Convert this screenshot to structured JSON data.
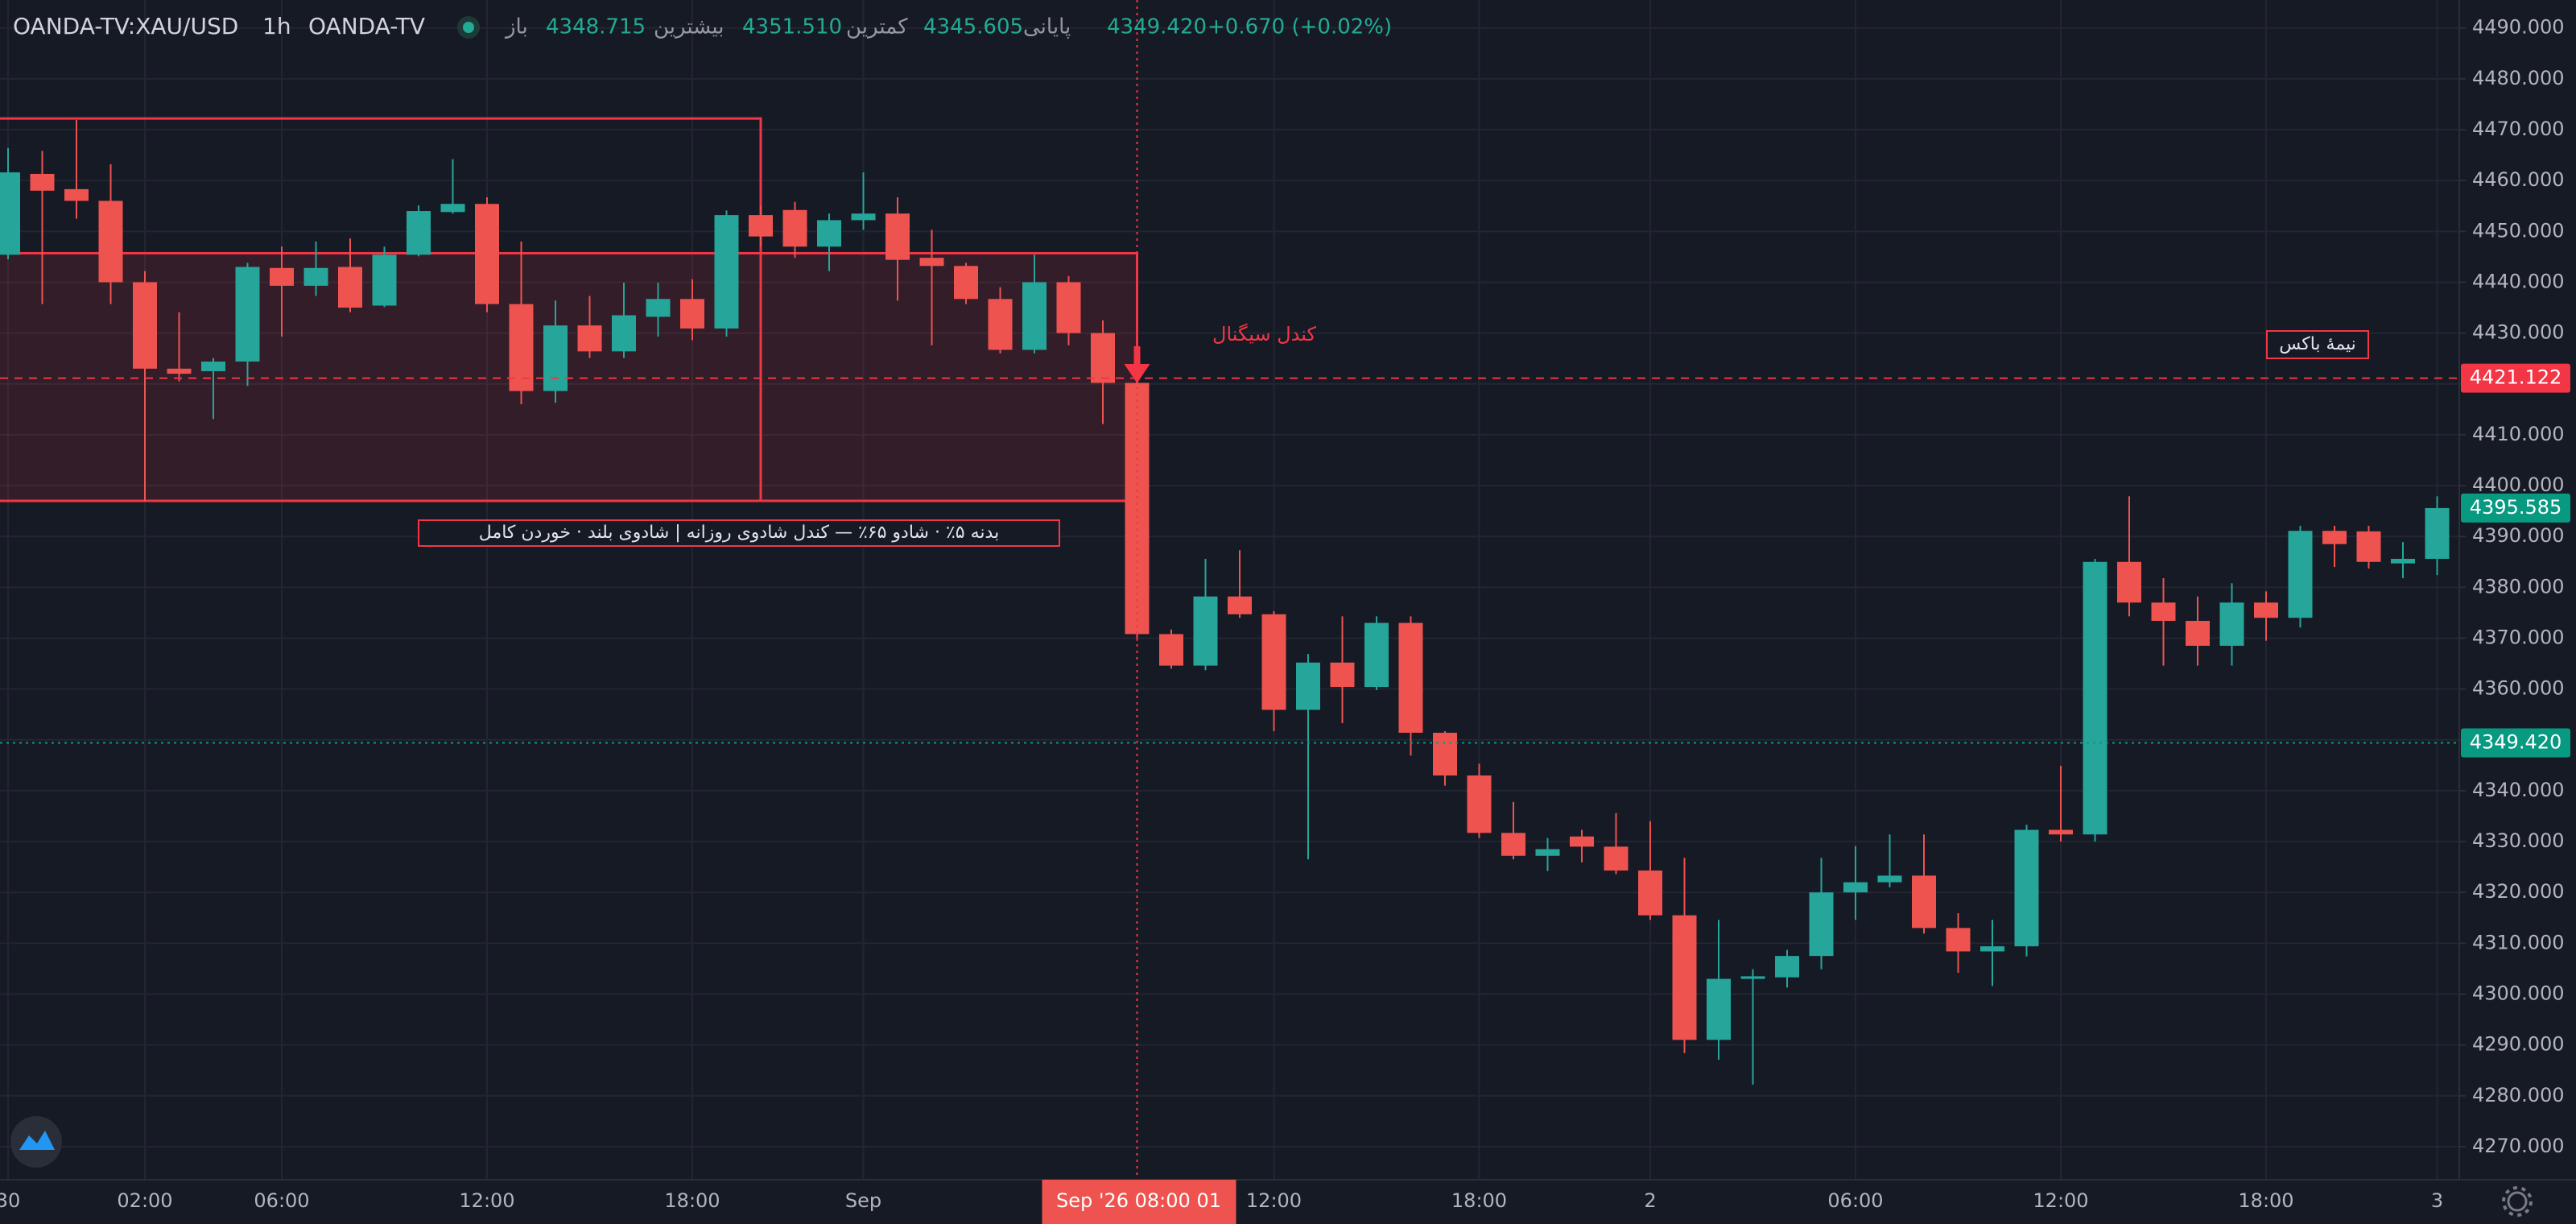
{
  "chart_data": {
    "type": "candlestick",
    "header": {
      "symbol": "OANDA-TV:XAU/USD",
      "interval": "1h",
      "source": "OANDA-TV",
      "fields": [
        {
          "label": "باز",
          "value": "4348.715"
        },
        {
          "label": "بیشترین",
          "value": "4351.510"
        },
        {
          "label": "کمترین",
          "value": "4345.605"
        },
        {
          "label": "پایانی",
          "value": "4349.420"
        }
      ],
      "change": "+0.670 (+0.02%)"
    },
    "categories": [
      "30",
      null,
      null,
      null,
      "02:00",
      null,
      null,
      null,
      "06:00",
      null,
      null,
      null,
      null,
      null,
      "12:00",
      null,
      null,
      null,
      null,
      null,
      "18:00",
      null,
      null,
      null,
      null,
      "Sep",
      null,
      null,
      null,
      null,
      null,
      null,
      null,
      null,
      null,
      null,
      null,
      "12:00",
      null,
      null,
      null,
      null,
      null,
      "18:00",
      null,
      null,
      null,
      null,
      "2",
      null,
      null,
      null,
      null,
      null,
      "06:00",
      null,
      null,
      null,
      null,
      null,
      "12:00",
      null,
      null,
      null,
      null,
      null,
      "18:00",
      null,
      null,
      null,
      null,
      "3"
    ],
    "open": [
      4445.4,
      4461.3,
      4458.3,
      4456,
      4440,
      4423,
      4422.5,
      4424.4,
      4442.8,
      4439.3,
      4443,
      4435.4,
      4445.4,
      4453.8,
      4455.4,
      4435.7,
      4418.6,
      4431.5,
      4426.4,
      4433.2,
      4436.7,
      4430.9,
      4453.2,
      4454.2,
      4447,
      4452.2,
      4453.5,
      4444.8,
      4443.2,
      4436.7,
      4426.7,
      4440,
      4430,
      4420.2,
      4370.8,
      4364.6,
      4378.2,
      4374.7,
      4355.9,
      4365.2,
      4360.4,
      4373,
      4351.4,
      4343,
      4331.7,
      4327.2,
      4331,
      4329,
      4324.3,
      4315.5,
      4291,
      4303,
      4303.3,
      4307.5,
      4320,
      4322,
      4323.3,
      4313,
      4308.4,
      4309.4,
      4332.3,
      4331.4,
      4385,
      4377,
      4373.4,
      4368.5,
      4377,
      4374,
      4391.1,
      4391,
      4384.7,
      4385.6
    ],
    "high": [
      4466.4,
      4465.8,
      4471.9,
      4463.2,
      4442.2,
      4434.1,
      4425.1,
      4443.8,
      4447,
      4448,
      4448.6,
      4447,
      4455.1,
      4464.2,
      4456.7,
      4448,
      4436.4,
      4437.3,
      4439.9,
      4439.9,
      4440.6,
      4454.1,
      4455.1,
      4455.8,
      4453.5,
      4461.6,
      4456.7,
      4450.3,
      4443.8,
      4439,
      4445.4,
      4441.2,
      4432.5,
      4422.8,
      4371.7,
      4385.6,
      4387.3,
      4375.3,
      4366.9,
      4374.3,
      4374.3,
      4374.3,
      4351.7,
      4345.3,
      4337.8,
      4330.7,
      4332.3,
      4335.6,
      4334,
      4326.8,
      4314.6,
      4304.9,
      4308.7,
      4326.8,
      4329.1,
      4331.4,
      4331.4,
      4315.9,
      4314.6,
      4333.3,
      4344.9,
      4385.6,
      4397.9,
      4381.8,
      4378.2,
      4380.8,
      4379.2,
      4392.1,
      4392.1,
      4392.1,
      4388.9,
      4397.9
    ],
    "low": [
      4444.5,
      4435.7,
      4452.5,
      4435.7,
      4396.9,
      4420.5,
      4413.1,
      4419.6,
      4429.3,
      4437.3,
      4434.1,
      4435.1,
      4445.1,
      4453.5,
      4434.1,
      4416,
      4416.3,
      4425.1,
      4425.1,
      4429.3,
      4428.6,
      4429.3,
      4447,
      4444.8,
      4442.2,
      4450.3,
      4436.4,
      4427.6,
      4435.7,
      4426,
      4426,
      4427.6,
      4412.1,
      4369.5,
      4364,
      4363.7,
      4374,
      4351.7,
      4326.5,
      4353.3,
      4359.8,
      4346.9,
      4341,
      4330.7,
      4326.5,
      4324.2,
      4325.9,
      4323.6,
      4314.6,
      4288.4,
      4287.1,
      4282.2,
      4301.3,
      4304.9,
      4314.6,
      4321,
      4311.9,
      4304.2,
      4301.6,
      4307.4,
      4330,
      4330,
      4374.3,
      4364.6,
      4364.6,
      4364.6,
      4369.5,
      4372.1,
      4384,
      4383.7,
      4381.8,
      4382.4
    ],
    "close": [
      4461.6,
      4458,
      4456,
      4440,
      4423,
      4422,
      4424.4,
      4443,
      4439.3,
      4442.8,
      4435,
      4445.4,
      4454,
      4455.4,
      4435.7,
      4418.6,
      4431.5,
      4426.4,
      4433.5,
      4436.7,
      4430.9,
      4453.2,
      4449,
      4447,
      4452.2,
      4453.5,
      4444.4,
      4443.2,
      4436.7,
      4426.7,
      4440,
      4430,
      4420.2,
      4370.8,
      4364.6,
      4378.2,
      4374.7,
      4355.9,
      4365.2,
      4360.4,
      4373,
      4351.4,
      4343,
      4331.7,
      4327.2,
      4328.5,
      4329,
      4324.3,
      4315.5,
      4291,
      4303,
      4303.5,
      4307.5,
      4320,
      4322,
      4323.3,
      4313,
      4308.4,
      4309.4,
      4332.3,
      4331.4,
      4385,
      4377,
      4373.4,
      4368.5,
      4377,
      4374,
      4391.1,
      4388.5,
      4385,
      4385.6,
      4395.585
    ],
    "up_color": "#26a69a",
    "down_color": "#ef5350",
    "ylim": [
      4263.5,
      4495.5
    ],
    "yticks": [
      {
        "value": 4270,
        "label": "4270.000"
      },
      {
        "value": 4280,
        "label": "4280.000"
      },
      {
        "value": 4290,
        "label": "4290.000"
      },
      {
        "value": 4300,
        "label": "4300.000"
      },
      {
        "value": 4310,
        "label": "4310.000"
      },
      {
        "value": 4320,
        "label": "4320.000"
      },
      {
        "value": 4330,
        "label": "4330.000"
      },
      {
        "value": 4340,
        "label": "4340.000"
      },
      {
        "value": 4350,
        "label": "4350.000"
      },
      {
        "value": 4360,
        "label": "4360.000"
      },
      {
        "value": 4370,
        "label": "4370.000"
      },
      {
        "value": 4380,
        "label": "4380.000"
      },
      {
        "value": 4390,
        "label": "4390.000"
      },
      {
        "value": 4400,
        "label": "4400.000"
      },
      {
        "value": 4410,
        "label": "4410.000"
      },
      {
        "value": 4420,
        "label": "4420.000"
      },
      {
        "value": 4430,
        "label": "4430.000"
      },
      {
        "value": 4440,
        "label": "4440.000"
      },
      {
        "value": 4450,
        "label": "4450.000"
      },
      {
        "value": 4460,
        "label": "4460.000"
      },
      {
        "value": 4470,
        "label": "4470.000"
      },
      {
        "value": 4480,
        "label": "4480.000"
      },
      {
        "value": 4490,
        "label": "4490.000"
      }
    ],
    "grid": true,
    "price_lines": [
      {
        "value": 4421.122,
        "label": "4421.122",
        "color": "#f23645",
        "line_style": "dashed"
      },
      {
        "value": 4395.585,
        "label": "4395.585",
        "color": "#089981",
        "line_style": "none"
      },
      {
        "value": 4349.42,
        "label": "4349.420",
        "color": "#089981",
        "line_style": "dotted"
      }
    ],
    "crosshair_label": "Sep '26   08:00 01",
    "zones": [
      {
        "high": 4472.2,
        "low": 4397
      },
      {
        "high": 4445.7,
        "low": 4397
      }
    ],
    "annotations": [
      "کندل سیگنال",
      "نیمهٔ باکس",
      "بدنه ۵٪ · شادو ۶۵٪ — کندل شادوی روزانه | شادوی بلند · خوردن کامل"
    ]
  }
}
